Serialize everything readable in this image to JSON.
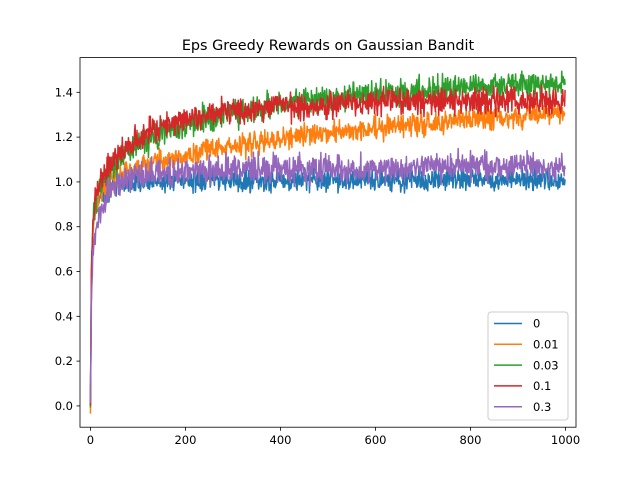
{
  "chart_data": {
    "type": "line",
    "title": "Eps Greedy Rewards on Gaussian Bandit",
    "xlabel": "",
    "ylabel": "",
    "xlim": [
      -22,
      1022
    ],
    "ylim": [
      -0.095,
      1.555
    ],
    "xticks": [
      0,
      200,
      400,
      600,
      800,
      1000
    ],
    "xtick_labels": [
      "0",
      "200",
      "400",
      "600",
      "800",
      "1000"
    ],
    "yticks": [
      0.0,
      0.2,
      0.4,
      0.6,
      0.8,
      1.0,
      1.2,
      1.4
    ],
    "ytick_labels": [
      "0.0",
      "0.2",
      "0.4",
      "0.6",
      "0.8",
      "1.0",
      "1.2",
      "1.4"
    ],
    "grid": false,
    "legend_position": "lower-right",
    "n_steps": 1000,
    "series": [
      {
        "name": "0",
        "color": "#1f77b4",
        "x": [
          0,
          2,
          5,
          10,
          20,
          40,
          60,
          100,
          200,
          400,
          600,
          800,
          1000
        ],
        "values": [
          0.0,
          0.55,
          0.78,
          0.88,
          0.94,
          0.97,
          0.99,
          1.0,
          1.01,
          1.01,
          1.01,
          1.01,
          1.01
        ],
        "noise": 0.025
      },
      {
        "name": "0.01",
        "color": "#ff7f0e",
        "x": [
          0,
          2,
          5,
          10,
          20,
          40,
          60,
          100,
          200,
          300,
          400,
          500,
          600,
          700,
          800,
          900,
          1000
        ],
        "values": [
          -0.02,
          0.55,
          0.78,
          0.88,
          0.95,
          1.0,
          1.03,
          1.07,
          1.12,
          1.16,
          1.19,
          1.22,
          1.24,
          1.26,
          1.28,
          1.29,
          1.31
        ],
        "noise": 0.025
      },
      {
        "name": "0.03",
        "color": "#2ca02c",
        "x": [
          0,
          2,
          5,
          10,
          20,
          40,
          60,
          100,
          150,
          200,
          300,
          400,
          500,
          600,
          700,
          800,
          900,
          1000
        ],
        "values": [
          0.0,
          0.6,
          0.8,
          0.9,
          0.98,
          1.05,
          1.1,
          1.17,
          1.22,
          1.26,
          1.31,
          1.34,
          1.37,
          1.39,
          1.41,
          1.42,
          1.43,
          1.44
        ],
        "noise": 0.03
      },
      {
        "name": "0.1",
        "color": "#d62728",
        "x": [
          0,
          2,
          5,
          10,
          20,
          40,
          60,
          100,
          150,
          200,
          300,
          400,
          500,
          600,
          700,
          800,
          900,
          1000
        ],
        "values": [
          0.0,
          0.6,
          0.82,
          0.92,
          1.0,
          1.08,
          1.13,
          1.2,
          1.25,
          1.28,
          1.32,
          1.34,
          1.35,
          1.36,
          1.36,
          1.36,
          1.36,
          1.36
        ],
        "noise": 0.03
      },
      {
        "name": "0.3",
        "color": "#9467bd",
        "x": [
          0,
          2,
          5,
          10,
          20,
          40,
          60,
          100,
          200,
          300,
          400,
          600,
          800,
          1000
        ],
        "values": [
          0.0,
          0.45,
          0.68,
          0.78,
          0.86,
          0.96,
          1.0,
          1.03,
          1.05,
          1.06,
          1.06,
          1.06,
          1.07,
          1.07
        ],
        "noise": 0.03
      }
    ]
  }
}
